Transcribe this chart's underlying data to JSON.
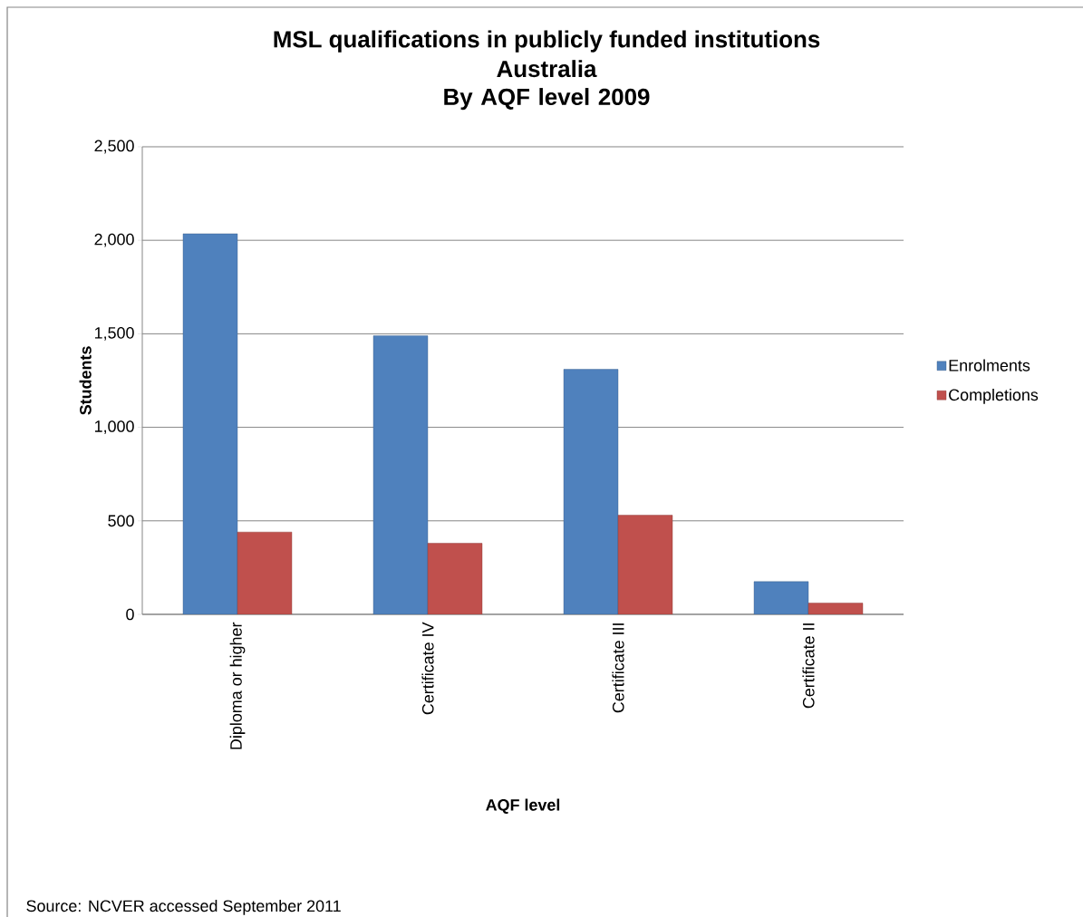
{
  "chart_data": {
    "type": "bar",
    "title": "MSL qualifications in publicly funded institutions",
    "subtitle": "Australia By AQF level 2009",
    "xlabel": "AQF level",
    "ylabel": "Students",
    "annotations": [
      "Source: NCVER accessed September 2011"
    ],
    "categories": [
      "Diploma or higher",
      "Certificate IV",
      "Certificate III",
      "Certificate II"
    ],
    "series": [
      {
        "name": "Enrolments",
        "color": "#4f81bd",
        "values": [
          2035,
          1490,
          1310,
          175
        ]
      },
      {
        "name": "Completions",
        "color": "#c0504d",
        "values": [
          440,
          380,
          530,
          60
        ]
      }
    ],
    "ylim": [
      0,
      2500
    ],
    "yticks": [
      0,
      500,
      {
        "value": 1000,
        "label": "1,000"
      },
      {
        "value": 1500,
        "label": "1,500"
      },
      {
        "value": 2000,
        "label": "2,000"
      },
      {
        "value": 2500,
        "label": "2,500"
      }
    ],
    "grid": "y",
    "legend": "right"
  }
}
